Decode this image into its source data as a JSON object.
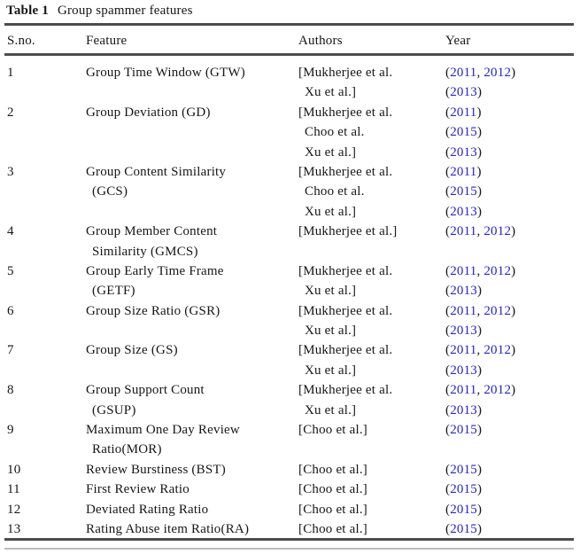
{
  "colors": {
    "link_blue": "#2424cf",
    "text": "#161616",
    "rule": "#4d4d4d"
  },
  "caption": {
    "label": "Table 1",
    "text": "Group spammer features"
  },
  "table": {
    "columns": [
      "S.no.",
      "Feature",
      "Authors",
      "Year"
    ],
    "rows": [
      {
        "sno": "1",
        "feature_lines": [
          "Group Time Window (GTW)"
        ],
        "author_lines": [
          "[Mukherjee et al.",
          "Xu et al.]"
        ],
        "year_lines": [
          [
            "2011",
            "2012"
          ],
          [
            "2013"
          ]
        ]
      },
      {
        "sno": "2",
        "feature_lines": [
          "Group Deviation (GD)"
        ],
        "author_lines": [
          "[Mukherjee et al.",
          "Choo et al.",
          "Xu et al.]"
        ],
        "year_lines": [
          [
            "2011"
          ],
          [
            "2015"
          ],
          [
            "2013"
          ]
        ]
      },
      {
        "sno": "3",
        "feature_lines": [
          "Group Content Similarity",
          "(GCS)"
        ],
        "author_lines": [
          "[Mukherjee et al.",
          "Choo et al.",
          "Xu et al.]"
        ],
        "year_lines": [
          [
            "2011"
          ],
          [
            "2015"
          ],
          [
            "2013"
          ]
        ]
      },
      {
        "sno": "4",
        "feature_lines": [
          "Group Member Content",
          "Similarity (GMCS)"
        ],
        "author_lines": [
          "[Mukherjee et al.]"
        ],
        "year_lines": [
          [
            "2011",
            "2012"
          ]
        ]
      },
      {
        "sno": "5",
        "feature_lines": [
          "Group Early Time Frame",
          "(GETF)"
        ],
        "author_lines": [
          "[Mukherjee et al.",
          "Xu et al.]"
        ],
        "year_lines": [
          [
            "2011",
            "2012"
          ],
          [
            "2013"
          ]
        ]
      },
      {
        "sno": "6",
        "feature_lines": [
          "Group Size Ratio (GSR)"
        ],
        "author_lines": [
          "[Mukherjee et al.",
          "Xu et al.]"
        ],
        "year_lines": [
          [
            "2011",
            "2012"
          ],
          [
            "2013"
          ]
        ]
      },
      {
        "sno": "7",
        "feature_lines": [
          "Group Size (GS)"
        ],
        "author_lines": [
          "[Mukherjee et al.",
          "Xu et al.]"
        ],
        "year_lines": [
          [
            "2011",
            "2012"
          ],
          [
            "2013"
          ]
        ]
      },
      {
        "sno": "8",
        "feature_lines": [
          "Group Support Count",
          "(GSUP)"
        ],
        "author_lines": [
          "[Mukherjee et al.",
          "Xu et al.]"
        ],
        "year_lines": [
          [
            "2011",
            "2012"
          ],
          [
            "2013"
          ]
        ]
      },
      {
        "sno": "9",
        "feature_lines": [
          "Maximum One Day Review",
          "Ratio(MOR)"
        ],
        "author_lines": [
          "[Choo et al.]"
        ],
        "year_lines": [
          [
            "2015"
          ]
        ]
      },
      {
        "sno": "10",
        "feature_lines": [
          "Review Burstiness (BST)"
        ],
        "author_lines": [
          "[Choo et al.]"
        ],
        "year_lines": [
          [
            "2015"
          ]
        ]
      },
      {
        "sno": "11",
        "feature_lines": [
          "First Review Ratio"
        ],
        "author_lines": [
          "[Choo et al.]"
        ],
        "year_lines": [
          [
            "2015"
          ]
        ]
      },
      {
        "sno": "12",
        "feature_lines": [
          "Deviated Rating Ratio"
        ],
        "author_lines": [
          "[Choo et al.]"
        ],
        "year_lines": [
          [
            "2015"
          ]
        ]
      },
      {
        "sno": "13",
        "feature_lines": [
          "Rating Abuse item Ratio(RA)"
        ],
        "author_lines": [
          "[Choo et al.]"
        ],
        "year_lines": [
          [
            "2015"
          ]
        ]
      }
    ]
  }
}
